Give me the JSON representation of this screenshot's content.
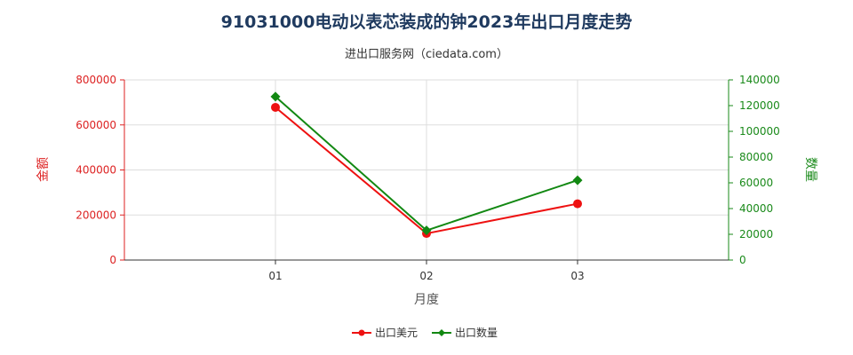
{
  "chart_data": {
    "type": "line",
    "title": "91031000电动以表芯装成的钟2023年出口月度走势",
    "subtitle": "进出口服务网（ciedata.com）",
    "xlabel": "月度",
    "categories": [
      "01",
      "02",
      "03"
    ],
    "left_axis": {
      "label": "金额",
      "range": [
        0,
        800000
      ],
      "ticks": [
        "0",
        "200000",
        "400000",
        "600000",
        "800000"
      ],
      "color": "#dd2222"
    },
    "right_axis": {
      "label": "数量",
      "range": [
        0,
        140000
      ],
      "ticks": [
        "0",
        "20000",
        "40000",
        "60000",
        "80000",
        "100000",
        "120000",
        "140000"
      ],
      "color": "#1a8a1a"
    },
    "series": [
      {
        "name": "出口美元",
        "axis": "left",
        "color": "#ee1111",
        "marker": "circle",
        "values": [
          678000,
          118000,
          250000
        ]
      },
      {
        "name": "出口数量",
        "axis": "right",
        "color": "#128812",
        "marker": "diamond",
        "values": [
          127000,
          23000,
          62000
        ]
      }
    ],
    "grid": true,
    "legend": "bottom-center"
  }
}
